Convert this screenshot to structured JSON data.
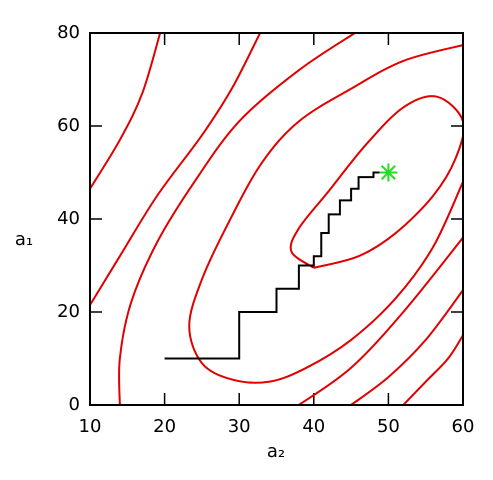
{
  "chart_data": {
    "type": "contour",
    "xlabel": "a₂",
    "ylabel": "a₁",
    "xlim": [
      10,
      60
    ],
    "ylim": [
      0,
      80
    ],
    "xticks": [
      10,
      20,
      30,
      40,
      50,
      60
    ],
    "yticks": [
      0,
      20,
      40,
      60,
      80
    ],
    "contour_color": "#e00000",
    "contours": [
      {
        "x": [
          40,
          37,
          38,
          42,
          47,
          52,
          56.5,
          60,
          59,
          56,
          51,
          46,
          40
        ],
        "y": [
          29.5,
          33,
          38,
          46,
          56,
          64,
          66.3,
          61,
          53,
          45,
          37,
          32,
          29.5
        ]
      },
      {
        "x": [
          60,
          52,
          45,
          38,
          33,
          28.5,
          25,
          23.3,
          25,
          29,
          34,
          39,
          45,
          51,
          56,
          60
        ],
        "y": [
          77.4,
          74,
          68,
          61,
          52,
          39,
          27,
          17,
          9,
          5.5,
          5,
          8,
          14,
          23,
          34,
          48
        ]
      },
      {
        "x": [
          45.5,
          38,
          30,
          24,
          19,
          15.5,
          14,
          14
        ],
        "y": [
          80,
          72,
          61,
          48,
          35,
          22,
          10,
          0
        ]
      },
      {
        "x": [
          38,
          45,
          52,
          60
        ],
        "y": [
          0,
          8,
          20,
          36
        ]
      },
      {
        "x": [
          10,
          14,
          19,
          25,
          29,
          32.8
        ],
        "y": [
          21.5,
          32,
          45,
          58,
          68,
          80
        ]
      },
      {
        "x": [
          45,
          50,
          55,
          60
        ],
        "y": [
          0,
          6,
          14,
          24.7
        ]
      },
      {
        "x": [
          10,
          14,
          17,
          19.4
        ],
        "y": [
          46.5,
          57,
          67,
          80
        ]
      },
      {
        "x": [
          52,
          55,
          58,
          60
        ],
        "y": [
          0,
          5,
          10,
          15
        ]
      }
    ],
    "path_color": "#000000",
    "path": {
      "x": [
        20,
        30,
        30,
        35,
        35,
        38,
        38,
        40,
        40,
        41,
        41,
        42,
        42,
        43.5,
        43.5,
        45,
        45,
        46,
        46,
        48,
        48,
        49
      ],
      "y": [
        10,
        10,
        20,
        20,
        25,
        25,
        30,
        30,
        32,
        32,
        37,
        37,
        41,
        41,
        44,
        44,
        46.5,
        46.5,
        49,
        49,
        50,
        50
      ]
    },
    "marker": {
      "x": 50,
      "y": 50,
      "color": "#22dd22"
    }
  }
}
